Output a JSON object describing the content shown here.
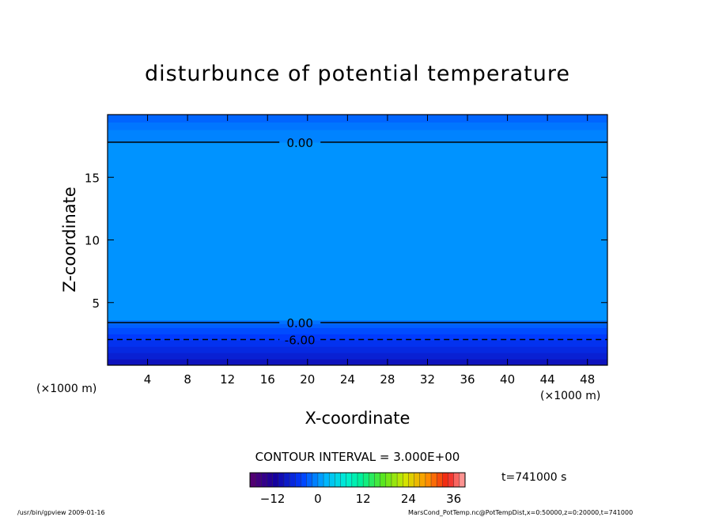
{
  "chart_data": {
    "type": "heatmap",
    "title": "disturbunce of potential temperature",
    "xlabel": "X-coordinate",
    "ylabel": "Z-coordinate",
    "x_unit": "(×1000 m)",
    "x_unit_right": "(×1000 m)",
    "xlim": [
      0,
      50
    ],
    "ylim": [
      0,
      20
    ],
    "x_ticks": [
      4,
      8,
      12,
      16,
      20,
      24,
      28,
      32,
      36,
      40,
      44,
      48
    ],
    "y_ticks": [
      5,
      10,
      15
    ],
    "z_bands": [
      {
        "z_from": 0,
        "z_to": 0.5,
        "value": -9
      },
      {
        "z_from": 0.5,
        "z_to": 1.0,
        "value": -7.5
      },
      {
        "z_from": 1.0,
        "z_to": 1.5,
        "value": -6.5
      },
      {
        "z_from": 1.5,
        "z_to": 2.0,
        "value": -5.5
      },
      {
        "z_from": 2.0,
        "z_to": 2.5,
        "value": -4.5
      },
      {
        "z_from": 2.5,
        "z_to": 3.0,
        "value": -3.5
      },
      {
        "z_from": 3.0,
        "z_to": 3.3,
        "value": -2.5
      },
      {
        "z_from": 3.3,
        "z_to": 3.6,
        "value": -1.5
      },
      {
        "z_from": 3.6,
        "z_to": 17.8,
        "value": 0.2
      },
      {
        "z_from": 17.8,
        "z_to": 18.8,
        "value": -0.6
      },
      {
        "z_from": 18.8,
        "z_to": 19.4,
        "value": -1.3
      },
      {
        "z_from": 19.4,
        "z_to": 20.0,
        "value": -2.2
      }
    ],
    "contours": [
      {
        "z": 17.8,
        "label": "0.00",
        "style": "solid"
      },
      {
        "z": 3.4,
        "label": "0.00",
        "style": "solid"
      },
      {
        "z": 2.05,
        "label": "-6.00",
        "style": "dashed"
      }
    ],
    "contour_interval": "CONTOUR INTERVAL = 3.000E+00",
    "colorbar_ticks": [
      -12,
      0,
      12,
      24,
      36
    ],
    "colorbar_range": [
      -18,
      39
    ],
    "time": "t=741000 s"
  },
  "footer": {
    "left": "/usr/bin/gpview   2009-01-16",
    "right": "MarsCond_PotTemp.nc@PotTempDist,x=0:50000,z=0:20000,t=741000"
  }
}
